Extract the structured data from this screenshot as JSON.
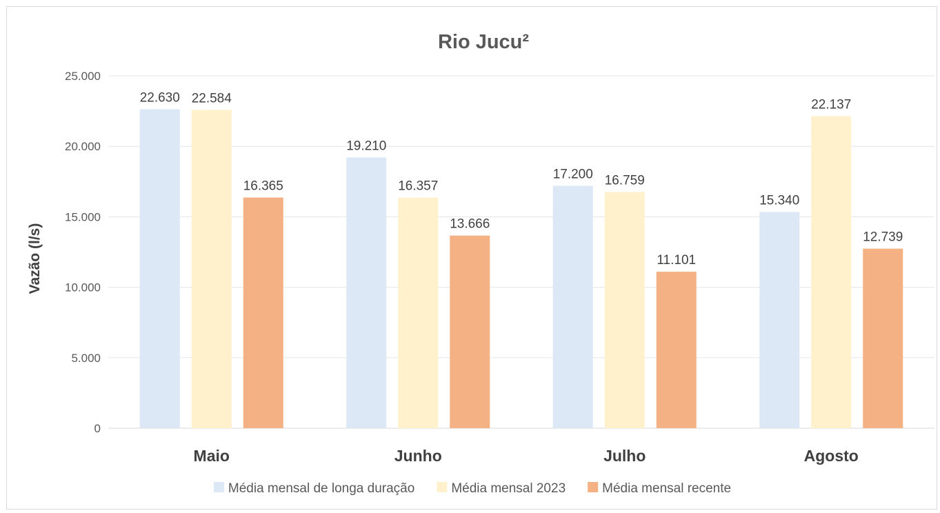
{
  "chart_data": {
    "type": "bar",
    "title": "Rio Jucu²",
    "ylabel": "Vazão (l/s)",
    "xlabel": "",
    "categories": [
      "Maio",
      "Junho",
      "Julho",
      "Agosto"
    ],
    "ylim": [
      0,
      25000
    ],
    "yticks": [
      0,
      5000,
      10000,
      15000,
      20000,
      25000
    ],
    "ytick_labels": [
      "0",
      "5.000",
      "10.000",
      "15.000",
      "20.000",
      "25.000"
    ],
    "grid": true,
    "legend_position": "bottom",
    "series": [
      {
        "name": "Média mensal de longa duração",
        "color": "#dce8f5",
        "values": [
          22630,
          19210,
          17200,
          15340
        ],
        "labels": [
          "22.630",
          "19.210",
          "17.200",
          "15.340"
        ]
      },
      {
        "name": "Média mensal 2023",
        "color": "#fff1cc",
        "values": [
          22584,
          16357,
          16759,
          22137
        ],
        "labels": [
          "22.584",
          "16.357",
          "16.759",
          "22.137"
        ]
      },
      {
        "name": "Média mensal recente",
        "color": "#f4b183",
        "values": [
          16365,
          13666,
          11101,
          12739
        ],
        "labels": [
          "16.365",
          "13.666",
          "11.101",
          "12.739"
        ]
      }
    ]
  }
}
